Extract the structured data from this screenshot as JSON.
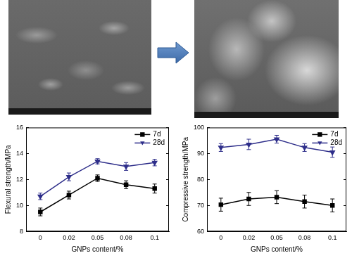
{
  "chart_data": [
    {
      "type": "line",
      "x_label": "GNPs content/%",
      "y_label": "Flexural strength/MPa",
      "categories": [
        "0",
        "0.02",
        "0.05",
        "0.08",
        "0.1"
      ],
      "series": [
        {
          "name": "7d",
          "color": "#000000",
          "marker": "square",
          "values": [
            9.5,
            10.8,
            12.1,
            11.6,
            11.3
          ],
          "errors": [
            0.3,
            0.3,
            0.25,
            0.3,
            0.35
          ]
        },
        {
          "name": "28d",
          "color": "#2e2e8a",
          "marker": "triangle_down",
          "values": [
            10.7,
            12.2,
            13.4,
            13.0,
            13.3
          ],
          "errors": [
            0.25,
            0.3,
            0.2,
            0.3,
            0.25
          ]
        }
      ],
      "ylim": [
        8,
        16
      ],
      "yticks": [
        8,
        10,
        12,
        14,
        16
      ],
      "grid": false,
      "legend": "upper right"
    },
    {
      "type": "line",
      "x_label": "GNPs content/%",
      "y_label": "Compressive strength/MPa",
      "categories": [
        "0",
        "0.02",
        "0.05",
        "0.08",
        "0.1"
      ],
      "series": [
        {
          "name": "7d",
          "color": "#000000",
          "marker": "square",
          "values": [
            70.3,
            72.5,
            73.2,
            71.5,
            70.0
          ],
          "errors": [
            2.5,
            2.5,
            2.5,
            2.5,
            2.5
          ]
        },
        {
          "name": "28d",
          "color": "#2e2e8a",
          "marker": "triangle_down",
          "values": [
            92.3,
            93.5,
            95.5,
            92.3,
            90.5
          ],
          "errors": [
            1.5,
            2.0,
            1.5,
            1.5,
            2.0
          ]
        }
      ],
      "ylim": [
        60,
        100
      ],
      "yticks": [
        60,
        70,
        80,
        90,
        100
      ],
      "grid": false,
      "legend": "upper right"
    }
  ]
}
